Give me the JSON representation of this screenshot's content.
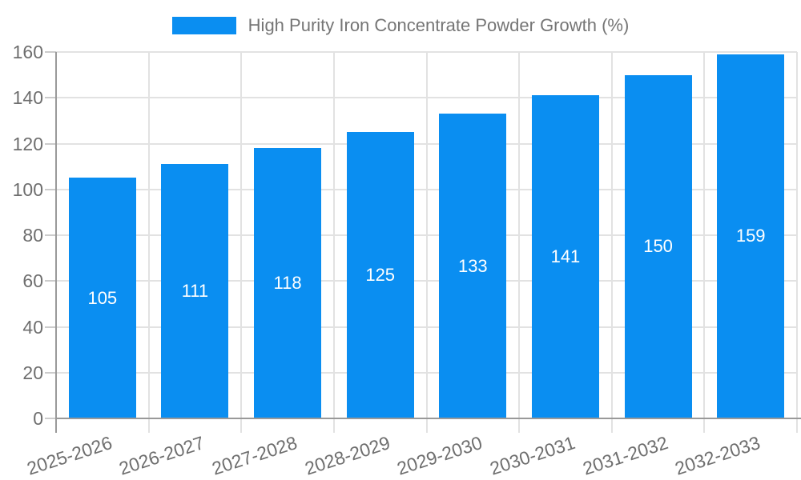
{
  "chart_data": {
    "type": "bar",
    "legend": "High Purity Iron Concentrate Powder Growth (%)",
    "categories": [
      "2025-2026",
      "2026-2027",
      "2027-2028",
      "2028-2029",
      "2029-2030",
      "2030-2031",
      "2031-2032",
      "2032-2033"
    ],
    "values": [
      105,
      111,
      118,
      125,
      133,
      141,
      150,
      159
    ],
    "bar_value_labels": [
      "105",
      "111",
      "118",
      "125",
      "133",
      "141",
      "150",
      "159"
    ],
    "title": "",
    "xlabel": "",
    "ylabel": "",
    "ylim": [
      0,
      160
    ],
    "yticks": [
      0,
      20,
      40,
      60,
      80,
      100,
      120,
      140,
      160
    ],
    "grid": true,
    "legend_position": "top-center",
    "colors": {
      "bar": "#0a8ef1",
      "bar_value_text": "#ffffff",
      "axis_line": "#999999",
      "gridline": "#e2e2e2",
      "outer_tick": "#cccccc",
      "tick_text": "#6e6e6e",
      "legend_text": "#757575"
    }
  }
}
